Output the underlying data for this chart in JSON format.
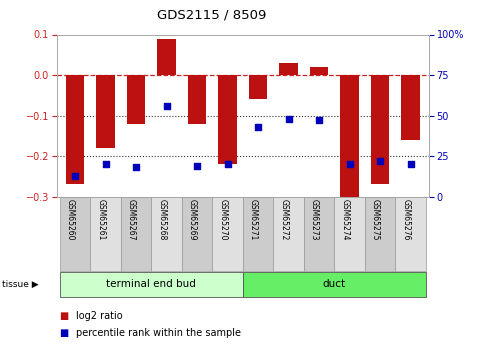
{
  "title": "GDS2115 / 8509",
  "samples": [
    "GSM65260",
    "GSM65261",
    "GSM65267",
    "GSM65268",
    "GSM65269",
    "GSM65270",
    "GSM65271",
    "GSM65272",
    "GSM65273",
    "GSM65274",
    "GSM65275",
    "GSM65276"
  ],
  "log2_ratio": [
    -0.27,
    -0.18,
    -0.12,
    0.09,
    -0.12,
    -0.22,
    -0.06,
    0.03,
    0.02,
    -0.3,
    -0.27,
    -0.16
  ],
  "percentile": [
    13,
    20,
    18,
    56,
    19,
    20,
    43,
    48,
    47,
    20,
    22,
    20
  ],
  "groups": [
    {
      "label": "terminal end bud",
      "start": 0,
      "end": 5,
      "color": "#ccffcc"
    },
    {
      "label": "duct",
      "start": 6,
      "end": 11,
      "color": "#66ee66"
    }
  ],
  "bar_color": "#bb1111",
  "dot_color": "#0000bb",
  "ylim_left": [
    -0.3,
    0.1
  ],
  "ylim_right": [
    0,
    100
  ],
  "yticks_left": [
    -0.3,
    -0.2,
    -0.1,
    0.0,
    0.1
  ],
  "yticks_right": [
    0,
    25,
    50,
    75,
    100
  ],
  "hline_zero_color": "#cc2222",
  "hline_dotted_color": "#333333",
  "bg_color": "#ffffff",
  "legend_items": [
    {
      "label": "log2 ratio",
      "color": "#bb1111"
    },
    {
      "label": "percentile rank within the sample",
      "color": "#0000bb"
    }
  ]
}
